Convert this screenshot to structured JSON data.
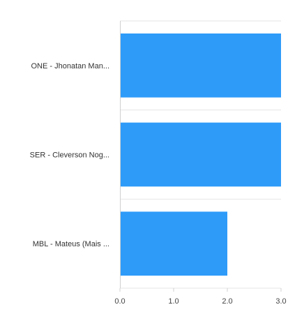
{
  "chart_data": {
    "type": "bar",
    "orientation": "horizontal",
    "categories": [
      "ONE - Jhonatan Man...",
      "SER - Cleverson Nog...",
      "MBL - Mateus (Mais ..."
    ],
    "values": [
      3.0,
      3.0,
      2.0
    ],
    "xlim": [
      0,
      3.0
    ],
    "x_ticks": [
      "0.0",
      "1.0",
      "2.0",
      "3.0"
    ],
    "title": "",
    "xlabel": "",
    "ylabel": "",
    "grid": true,
    "legend": "none",
    "colors": {
      "bar": "#2e9bf9",
      "grid": "#e6e6e6",
      "axis": "#d0d0d0"
    }
  }
}
